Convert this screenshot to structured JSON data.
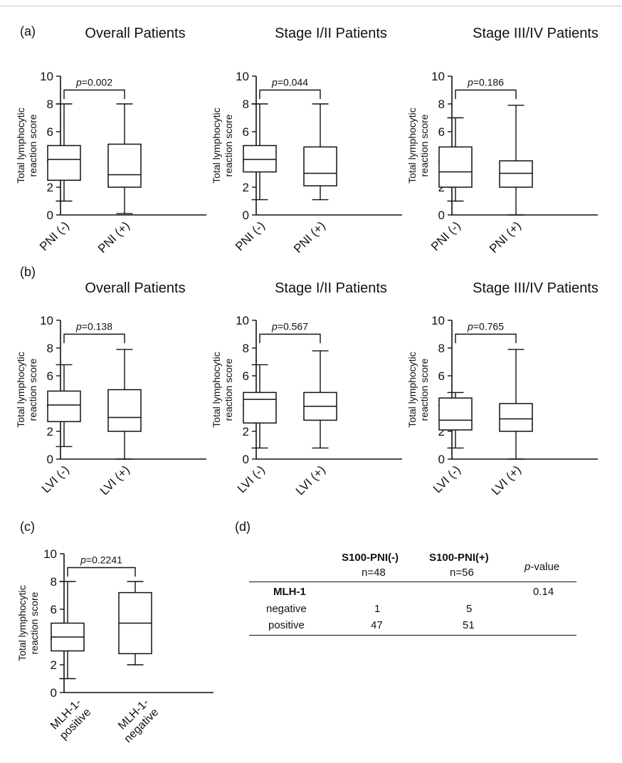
{
  "panels": [
    {
      "label": "(a)",
      "titles": [
        "Overall Patients",
        "Stage I/II Patients",
        "Stage III/IV Patients"
      ]
    },
    {
      "label": "(b)",
      "titles": [
        "Overall Patients",
        "Stage I/II Patients",
        "Stage III/IV Patients"
      ]
    },
    {
      "label": "(c)"
    },
    {
      "label": "(d)"
    }
  ],
  "chart_data": [
    {
      "type": "box",
      "panel": "(a)",
      "title": "Overall Patients",
      "ylabel": "Total lymphocytic reaction score",
      "ylim": [
        0,
        10
      ],
      "yticks": [
        0,
        2,
        4,
        6,
        8,
        10
      ],
      "categories": [
        "PNI (-)",
        "PNI (+)"
      ],
      "boxes": [
        {
          "min": 1.0,
          "q1": 2.5,
          "median": 4.0,
          "q3": 5.0,
          "max": 8.0
        },
        {
          "min": 0.1,
          "q1": 2.0,
          "median": 2.9,
          "q3": 5.1,
          "max": 8.0
        }
      ],
      "annotation": "p=0.002"
    },
    {
      "type": "box",
      "panel": "(a)",
      "title": "Stage I/II Patients",
      "ylabel": "Total lymphocytic reaction score",
      "ylim": [
        0,
        10
      ],
      "yticks": [
        0,
        2,
        4,
        6,
        8,
        10
      ],
      "categories": [
        "PNI (-)",
        "PNI (+)"
      ],
      "boxes": [
        {
          "min": 1.1,
          "q1": 3.1,
          "median": 4.0,
          "q3": 5.0,
          "max": 8.0
        },
        {
          "min": 1.1,
          "q1": 2.1,
          "median": 3.0,
          "q3": 4.9,
          "max": 8.0
        }
      ],
      "annotation": "p=0.044"
    },
    {
      "type": "box",
      "panel": "(a)",
      "title": "Stage III/IV Patients",
      "ylabel": "Total lymphocytic reaction score",
      "ylim": [
        0,
        10
      ],
      "yticks": [
        0,
        2,
        4,
        6,
        8,
        10
      ],
      "categories": [
        "PNI (-)",
        "PNI (+)"
      ],
      "boxes": [
        {
          "min": 1.0,
          "q1": 2.0,
          "median": 3.1,
          "q3": 4.9,
          "max": 7.0
        },
        {
          "min": 0.0,
          "q1": 2.0,
          "median": 3.0,
          "q3": 3.9,
          "max": 7.9
        }
      ],
      "annotation": "p=0.186"
    },
    {
      "type": "box",
      "panel": "(b)",
      "title": "Overall Patients",
      "ylabel": "Total lymphocytic reaction score",
      "ylim": [
        0,
        10
      ],
      "yticks": [
        0,
        2,
        4,
        6,
        8,
        10
      ],
      "categories": [
        "LVI (-)",
        "LVI (+)"
      ],
      "boxes": [
        {
          "min": 0.9,
          "q1": 2.7,
          "median": 3.9,
          "q3": 4.9,
          "max": 6.8
        },
        {
          "min": 0.0,
          "q1": 2.0,
          "median": 3.0,
          "q3": 5.0,
          "max": 7.9
        }
      ],
      "annotation": "p=0.138"
    },
    {
      "type": "box",
      "panel": "(b)",
      "title": "Stage I/II Patients",
      "ylabel": "Total lymphocytic reaction score",
      "ylim": [
        0,
        10
      ],
      "yticks": [
        0,
        2,
        4,
        6,
        8,
        10
      ],
      "categories": [
        "LVI (-)",
        "LVI (+)"
      ],
      "boxes": [
        {
          "min": 0.8,
          "q1": 2.6,
          "median": 4.3,
          "q3": 4.8,
          "max": 6.8
        },
        {
          "min": 0.8,
          "q1": 2.8,
          "median": 3.8,
          "q3": 4.8,
          "max": 7.8
        }
      ],
      "annotation": "p=0.567"
    },
    {
      "type": "box",
      "panel": "(b)",
      "title": "Stage III/IV Patients",
      "ylabel": "Total lymphocytic reaction score",
      "ylim": [
        0,
        10
      ],
      "yticks": [
        0,
        2,
        4,
        6,
        8,
        10
      ],
      "categories": [
        "LVI (-)",
        "LVI (+)"
      ],
      "boxes": [
        {
          "min": 0.8,
          "q1": 2.1,
          "median": 2.8,
          "q3": 4.4,
          "max": 4.8
        },
        {
          "min": 0.0,
          "q1": 2.0,
          "median": 2.9,
          "q3": 4.0,
          "max": 7.9
        }
      ],
      "annotation": "p=0.765"
    },
    {
      "type": "box",
      "panel": "(c)",
      "title": "",
      "ylabel": "Total lymphocytic reaction score",
      "ylim": [
        0,
        10
      ],
      "yticks": [
        0,
        2,
        4,
        6,
        8,
        10
      ],
      "categories": [
        "MLH-1-positive",
        "MLH-1-negative"
      ],
      "categories_lines": [
        [
          "MLH-1-",
          "positive"
        ],
        [
          "MLH-1-",
          "negative"
        ]
      ],
      "boxes": [
        {
          "min": 1.0,
          "q1": 3.0,
          "median": 4.0,
          "q3": 5.0,
          "max": 8.0
        },
        {
          "min": 2.0,
          "q1": 2.8,
          "median": 5.0,
          "q3": 7.2,
          "max": 8.0
        }
      ],
      "annotation": "p=0.2241"
    },
    {
      "type": "table",
      "panel": "(d)",
      "columns": [
        {
          "header": "S100-PNI(-)",
          "sub": "n=48"
        },
        {
          "header": "S100-PNI(+)",
          "sub": "n=56"
        },
        {
          "header": "p-value",
          "sub": ""
        }
      ],
      "group": "MLH-1",
      "group_pvalue": "0.14",
      "rows": [
        {
          "label": "negative",
          "values": [
            "1",
            "5"
          ]
        },
        {
          "label": "positive",
          "values": [
            "47",
            "51"
          ]
        }
      ]
    }
  ]
}
